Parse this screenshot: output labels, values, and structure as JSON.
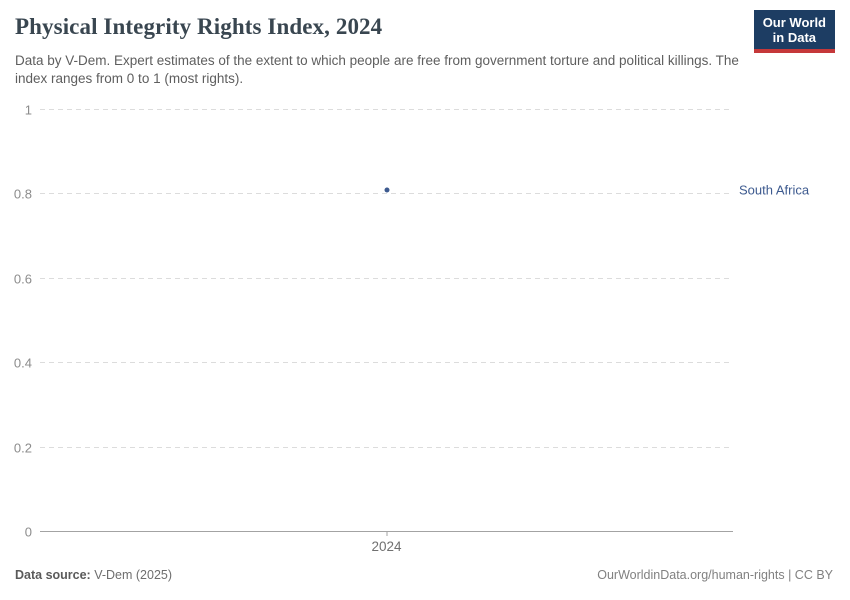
{
  "header": {
    "title": "Physical Integrity Rights Index, 2024",
    "subtitle": "Data by V-Dem. Expert estimates of the extent to which people are free from government torture and political killings. The index ranges from 0 to 1 (most rights).",
    "logo": {
      "line1": "Our World",
      "line2": "in Data",
      "bg_color": "#1d3d63",
      "accent_color": "#c5383a"
    }
  },
  "chart_data": {
    "type": "scatter",
    "title": "Physical Integrity Rights Index, 2024",
    "x": [
      2024
    ],
    "series": [
      {
        "name": "South Africa",
        "values": [
          0.81
        ],
        "color": "#3d5a8f"
      }
    ],
    "xlabel": "",
    "ylabel": "",
    "ylim": [
      0,
      1
    ],
    "yticks": [
      0,
      0.2,
      0.4,
      0.6,
      0.8,
      1
    ],
    "ytick_labels": [
      "0",
      "0.2",
      "0.4",
      "0.6",
      "0.8",
      "1"
    ],
    "xtick_labels": [
      "2024"
    ],
    "grid": "horizontal-dashed",
    "gridline_color": "#dcdcdc",
    "axis_color": "#a3a3a3",
    "legend_position": "label-right-of-plot"
  },
  "footer": {
    "source_label": "Data source:",
    "source_value": "V-Dem (2025)",
    "credit": "OurWorldinData.org/human-rights | CC BY"
  }
}
